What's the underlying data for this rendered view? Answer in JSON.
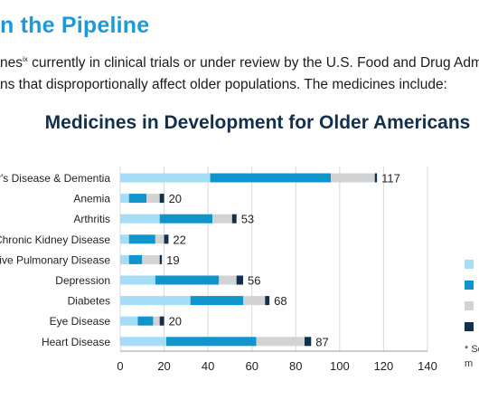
{
  "heading": "n the Pipeline",
  "intro": {
    "line1_a": "nes",
    "line1_sup": "ix",
    "line1_b": " currently in clinical trials or under review by the U.S. Food and Drug Adminis",
    "line2": "ns that disproportionally affect older populations. The medicines include:"
  },
  "footnote": {
    "line1": "* Se",
    "line2": "m"
  },
  "colors": {
    "segment1": "#a6ddf6",
    "segment2": "#0f95cc",
    "segment3": "#d2d3d5",
    "segment4": "#12304d",
    "grid": "#d9d9d9",
    "heading": "#1b9ad6"
  },
  "chart_data": {
    "type": "bar",
    "orientation": "horizontal",
    "stacked": true,
    "title": "Medicines in Development for Older Americans",
    "categories": [
      "r's Disease & Dementia",
      "Anemia",
      "Arthritis",
      "Chronic Kidney Disease",
      "ive Pulmonary Disease",
      "Depression",
      "Diabetes",
      "Eye Disease",
      "Heart Disease"
    ],
    "series": [
      {
        "values": [
          41,
          4,
          18,
          4,
          4,
          16,
          32,
          8,
          21
        ]
      },
      {
        "values": [
          55,
          8,
          24,
          12,
          6,
          29,
          24,
          7,
          41
        ]
      },
      {
        "values": [
          20,
          6,
          9,
          4,
          8,
          8,
          10,
          3,
          22
        ]
      },
      {
        "values": [
          1,
          2,
          2,
          2,
          1,
          3,
          2,
          2,
          3
        ]
      }
    ],
    "totals": [
      "117",
      "20",
      "53",
      "22",
      "19",
      "56",
      "68",
      "20",
      "87"
    ],
    "xlim": [
      0,
      140
    ],
    "xticks": [
      "0",
      "20",
      "40",
      "60",
      "80",
      "100",
      "120",
      "140"
    ],
    "grid": true,
    "legend": "right"
  }
}
